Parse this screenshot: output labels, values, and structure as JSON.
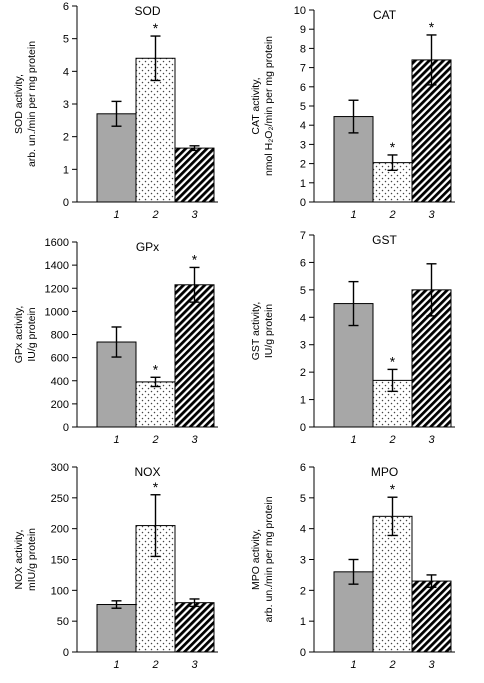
{
  "chart_data": [
    {
      "type": "bar",
      "title": "SOD",
      "ylabel_lines": [
        "SOD activity,",
        "arb. un./min per mg protein"
      ],
      "categories": [
        "1",
        "2",
        "3"
      ],
      "values": [
        2.7,
        4.4,
        1.65
      ],
      "errors": [
        0.38,
        0.68,
        0.07
      ],
      "significant": [
        false,
        true,
        false
      ],
      "ylim": [
        0,
        6
      ],
      "yticks": [
        "0",
        "1",
        "2",
        "3",
        "4",
        "5",
        "6"
      ],
      "fills": [
        "solid",
        "dots",
        "hatch"
      ]
    },
    {
      "type": "bar",
      "title": "CAT",
      "ylabel_lines": [
        "CAT activity,",
        "nmol H₂O₂/min per mg protein"
      ],
      "categories": [
        "1",
        "2",
        "3"
      ],
      "values": [
        4.45,
        2.05,
        7.4
      ],
      "errors": [
        0.85,
        0.4,
        1.3
      ],
      "significant": [
        false,
        true,
        true
      ],
      "ylim": [
        0,
        10
      ],
      "yticks": [
        "0",
        "1",
        "2",
        "3",
        "4",
        "5",
        "6",
        "7",
        "8",
        "9",
        "10"
      ],
      "fills": [
        "solid",
        "dots",
        "hatch"
      ]
    },
    {
      "type": "bar",
      "title": "GPx",
      "ylabel_lines": [
        "GPx activity,",
        "IU/g protein"
      ],
      "categories": [
        "1",
        "2",
        "3"
      ],
      "values": [
        735,
        390,
        1230
      ],
      "errors": [
        130,
        40,
        150
      ],
      "significant": [
        false,
        true,
        true
      ],
      "ylim": [
        0,
        1600
      ],
      "yticks": [
        "0",
        "200",
        "400",
        "600",
        "800",
        "1000",
        "1200",
        "1400",
        "1600"
      ],
      "fills": [
        "solid",
        "dots",
        "hatch"
      ]
    },
    {
      "type": "bar",
      "title": "GST",
      "ylabel_lines": [
        "GST activity,",
        "IU/g protein"
      ],
      "categories": [
        "1",
        "2",
        "3"
      ],
      "values": [
        4.5,
        1.7,
        5.0
      ],
      "errors": [
        0.8,
        0.4,
        0.95
      ],
      "significant": [
        false,
        true,
        false
      ],
      "ylim": [
        0,
        7
      ],
      "yticks": [
        "0",
        "1",
        "2",
        "3",
        "4",
        "5",
        "6",
        "7"
      ],
      "fills": [
        "solid",
        "dots",
        "hatch"
      ]
    },
    {
      "type": "bar",
      "title": "NOX",
      "ylabel_lines": [
        "NOX activity,",
        "mIU/g protein"
      ],
      "categories": [
        "1",
        "2",
        "3"
      ],
      "values": [
        77,
        205,
        80
      ],
      "errors": [
        6,
        50,
        6
      ],
      "significant": [
        false,
        true,
        false
      ],
      "ylim": [
        0,
        300
      ],
      "yticks": [
        "0",
        "50",
        "100",
        "150",
        "200",
        "250",
        "300"
      ],
      "fills": [
        "solid",
        "dots",
        "hatch"
      ]
    },
    {
      "type": "bar",
      "title": "MPO",
      "ylabel_lines": [
        "MPO activity,",
        "arb. un./min per mg protein"
      ],
      "categories": [
        "1",
        "2",
        "3"
      ],
      "values": [
        2.6,
        4.4,
        2.3
      ],
      "errors": [
        0.4,
        0.62,
        0.2
      ],
      "significant": [
        false,
        true,
        false
      ],
      "ylim": [
        0,
        6
      ],
      "yticks": [
        "0",
        "1",
        "2",
        "3",
        "4",
        "5",
        "6"
      ],
      "fills": [
        "solid",
        "dots",
        "hatch"
      ]
    }
  ],
  "significance_marker": "*",
  "colors": {
    "solid": "#a7a7a7",
    "stroke": "#000000",
    "dots": "#444444",
    "background": "#ffffff"
  }
}
